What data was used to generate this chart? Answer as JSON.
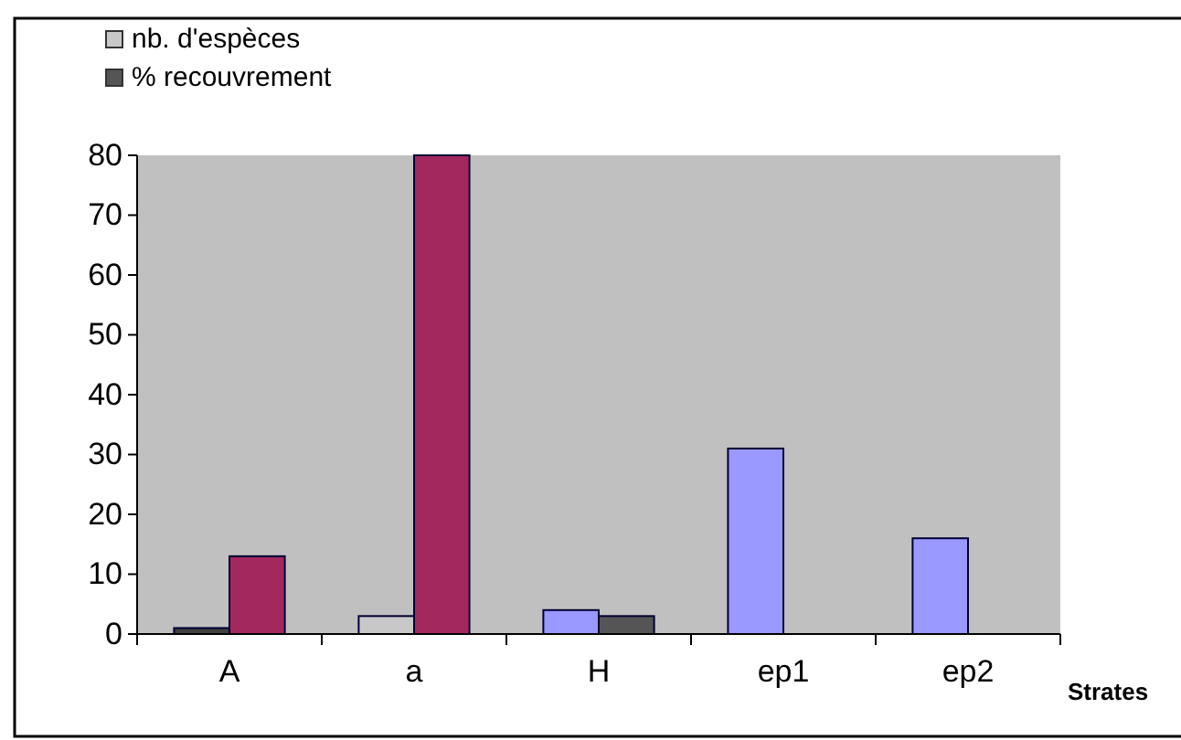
{
  "chart_data": {
    "type": "bar",
    "xlabel": "Strates",
    "categories": [
      "A",
      "a",
      "H",
      "ep1",
      "ep2"
    ],
    "series": [
      {
        "name": "nb. d'espèces",
        "color": "#c8c8c8",
        "colors": [
          "#404040",
          "#c8c8c8",
          "#9999ff",
          "#9999ff",
          "#9999ff"
        ],
        "values": [
          1,
          3,
          4,
          31,
          16
        ]
      },
      {
        "name": "% recouvrement",
        "color": "#555555",
        "colors": [
          "#a3285e",
          "#a3285e",
          "#555555",
          null,
          null
        ],
        "values": [
          13,
          80,
          3,
          null,
          null
        ]
      }
    ],
    "ylim": [
      0,
      80
    ],
    "yticks": [
      0,
      10,
      20,
      30,
      40,
      50,
      60,
      70,
      80
    ],
    "grid": false,
    "legend": "top left"
  }
}
